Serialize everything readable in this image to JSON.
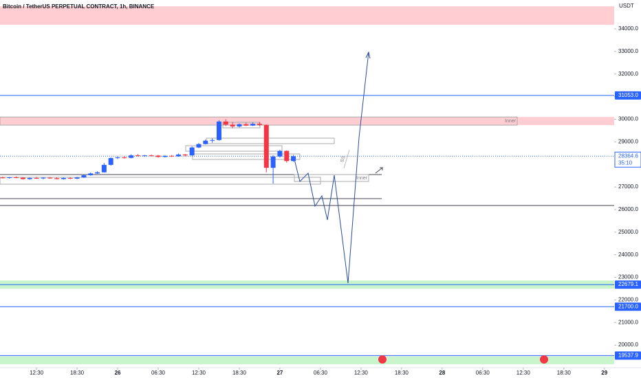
{
  "chart_data": {
    "type": "candlestick",
    "title": "Bitcoin / TetherUS PERPETUAL CONTRACT, 1h, BINANCE",
    "y_axis_label": "USDT",
    "up_color": "#2962ff",
    "down_color": "#f23645",
    "xlim": [
      -5.4,
      85.45
    ],
    "ylim": [
      19000,
      35280
    ],
    "xticks": [
      {
        "value": 0,
        "label": "12:30"
      },
      {
        "value": 6,
        "label": "18:30"
      },
      {
        "value": 12,
        "label": "26"
      },
      {
        "value": 18,
        "label": "06:30"
      },
      {
        "value": 24,
        "label": "12:30"
      },
      {
        "value": 30,
        "label": "18:30"
      },
      {
        "value": 36,
        "label": "27"
      },
      {
        "value": 42,
        "label": "06:30"
      },
      {
        "value": 48,
        "label": "12:30"
      },
      {
        "value": 54,
        "label": "18:30"
      },
      {
        "value": 60,
        "label": "28"
      },
      {
        "value": 66,
        "label": "06:30"
      },
      {
        "value": 72,
        "label": "12:30"
      },
      {
        "value": 78,
        "label": "18:30"
      },
      {
        "value": 84,
        "label": "29"
      }
    ],
    "yticks": [
      {
        "value": 20000,
        "label": "20000.0"
      },
      {
        "value": 21000,
        "label": "21000.0"
      },
      {
        "value": 22000,
        "label": "22000.0"
      },
      {
        "value": 23000,
        "label": "23000.0"
      },
      {
        "value": 24000,
        "label": "24000.0"
      },
      {
        "value": 25000,
        "label": "25000.0"
      },
      {
        "value": 26000,
        "label": "26000.0"
      },
      {
        "value": 27000,
        "label": "27000.0"
      },
      {
        "value": 28000,
        "label": "28000.0"
      },
      {
        "value": 29000,
        "label": "29000.0"
      },
      {
        "value": 30000,
        "label": "30000.0"
      },
      {
        "value": 31000,
        "label": "31000.0"
      },
      {
        "value": 32000,
        "label": "32000.0"
      },
      {
        "value": 33000,
        "label": "33000.0"
      },
      {
        "value": 34000,
        "label": "34000.0"
      }
    ],
    "x": [
      -5,
      -4,
      -3,
      -2,
      -1,
      0,
      1,
      2,
      3,
      4,
      5,
      6,
      7,
      8,
      9,
      10,
      11,
      12,
      13,
      14,
      15,
      16,
      17,
      18,
      19,
      20,
      21,
      22,
      23,
      24,
      25,
      26,
      27,
      28,
      29,
      30,
      31,
      32,
      33,
      34,
      35,
      36,
      37,
      38
    ],
    "open": [
      27420,
      27400,
      27430,
      27410,
      27350,
      27400,
      27380,
      27410,
      27390,
      27350,
      27400,
      27370,
      27420,
      27520,
      27600,
      27650,
      27980,
      28280,
      28310,
      28290,
      28400,
      28380,
      28400,
      28390,
      28330,
      28380,
      28360,
      28440,
      28400,
      28750,
      28900,
      29050,
      29080,
      29900,
      29760,
      29680,
      29780,
      29720,
      29800,
      29750,
      27850,
      28350,
      28600,
      28150
    ],
    "high": [
      27460,
      27440,
      27470,
      27440,
      27420,
      27450,
      27430,
      27440,
      27430,
      27420,
      27430,
      27450,
      27560,
      27640,
      27700,
      28060,
      28320,
      28360,
      28380,
      28450,
      28460,
      28420,
      28440,
      28420,
      28400,
      28420,
      28480,
      28460,
      28800,
      28950,
      29100,
      29150,
      29960,
      30000,
      29880,
      29820,
      29850,
      29860,
      29880,
      29770,
      28400,
      28650,
      28620,
      28420
    ],
    "low": [
      27380,
      27370,
      27390,
      27330,
      27320,
      27360,
      27340,
      27370,
      27340,
      27330,
      27350,
      27350,
      27400,
      27500,
      27580,
      27640,
      27950,
      28240,
      28260,
      28270,
      28350,
      28340,
      28360,
      28300,
      28310,
      28330,
      28340,
      28360,
      28390,
      28720,
      28880,
      28960,
      29050,
      29700,
      29600,
      29640,
      29700,
      29700,
      29700,
      27650,
      27150,
      28300,
      28080,
      28120
    ],
    "close": [
      27400,
      27430,
      27410,
      27350,
      27400,
      27380,
      27410,
      27390,
      27350,
      27400,
      27370,
      27420,
      27520,
      27600,
      27650,
      27980,
      28280,
      28310,
      28290,
      28400,
      28380,
      28400,
      28390,
      28330,
      28380,
      28360,
      28440,
      28400,
      28750,
      28900,
      29050,
      29080,
      29900,
      29760,
      29680,
      29780,
      29720,
      29800,
      29750,
      27850,
      28350,
      28600,
      28150,
      28364.6
    ],
    "levels": [
      {
        "value": 31053,
        "label": "31053.0",
        "color": "#2962ff"
      },
      {
        "value": 22679.1,
        "label": "22679.1",
        "color": "#2962ff"
      },
      {
        "value": 21700,
        "label": "21700.0",
        "color": "#2962ff"
      },
      {
        "value": 19537.9,
        "label": "19537.9",
        "color": "#2962ff"
      }
    ],
    "last_price": {
      "value": 28364.6,
      "label": "28364.6",
      "countdown": "35:10"
    },
    "zones": [
      {
        "from": 34180,
        "to": 35000,
        "color": "#ffcdd2"
      },
      {
        "from": 29740,
        "to": 30100,
        "color": "#ffcdd2"
      },
      {
        "from": 22500,
        "to": 22860,
        "color": "#c8f5cc"
      },
      {
        "from": 19150,
        "to": 19500,
        "color": "#c8f5cc"
      }
    ],
    "annotations": [
      "Inner",
      "Inner",
      "SS"
    ]
  }
}
